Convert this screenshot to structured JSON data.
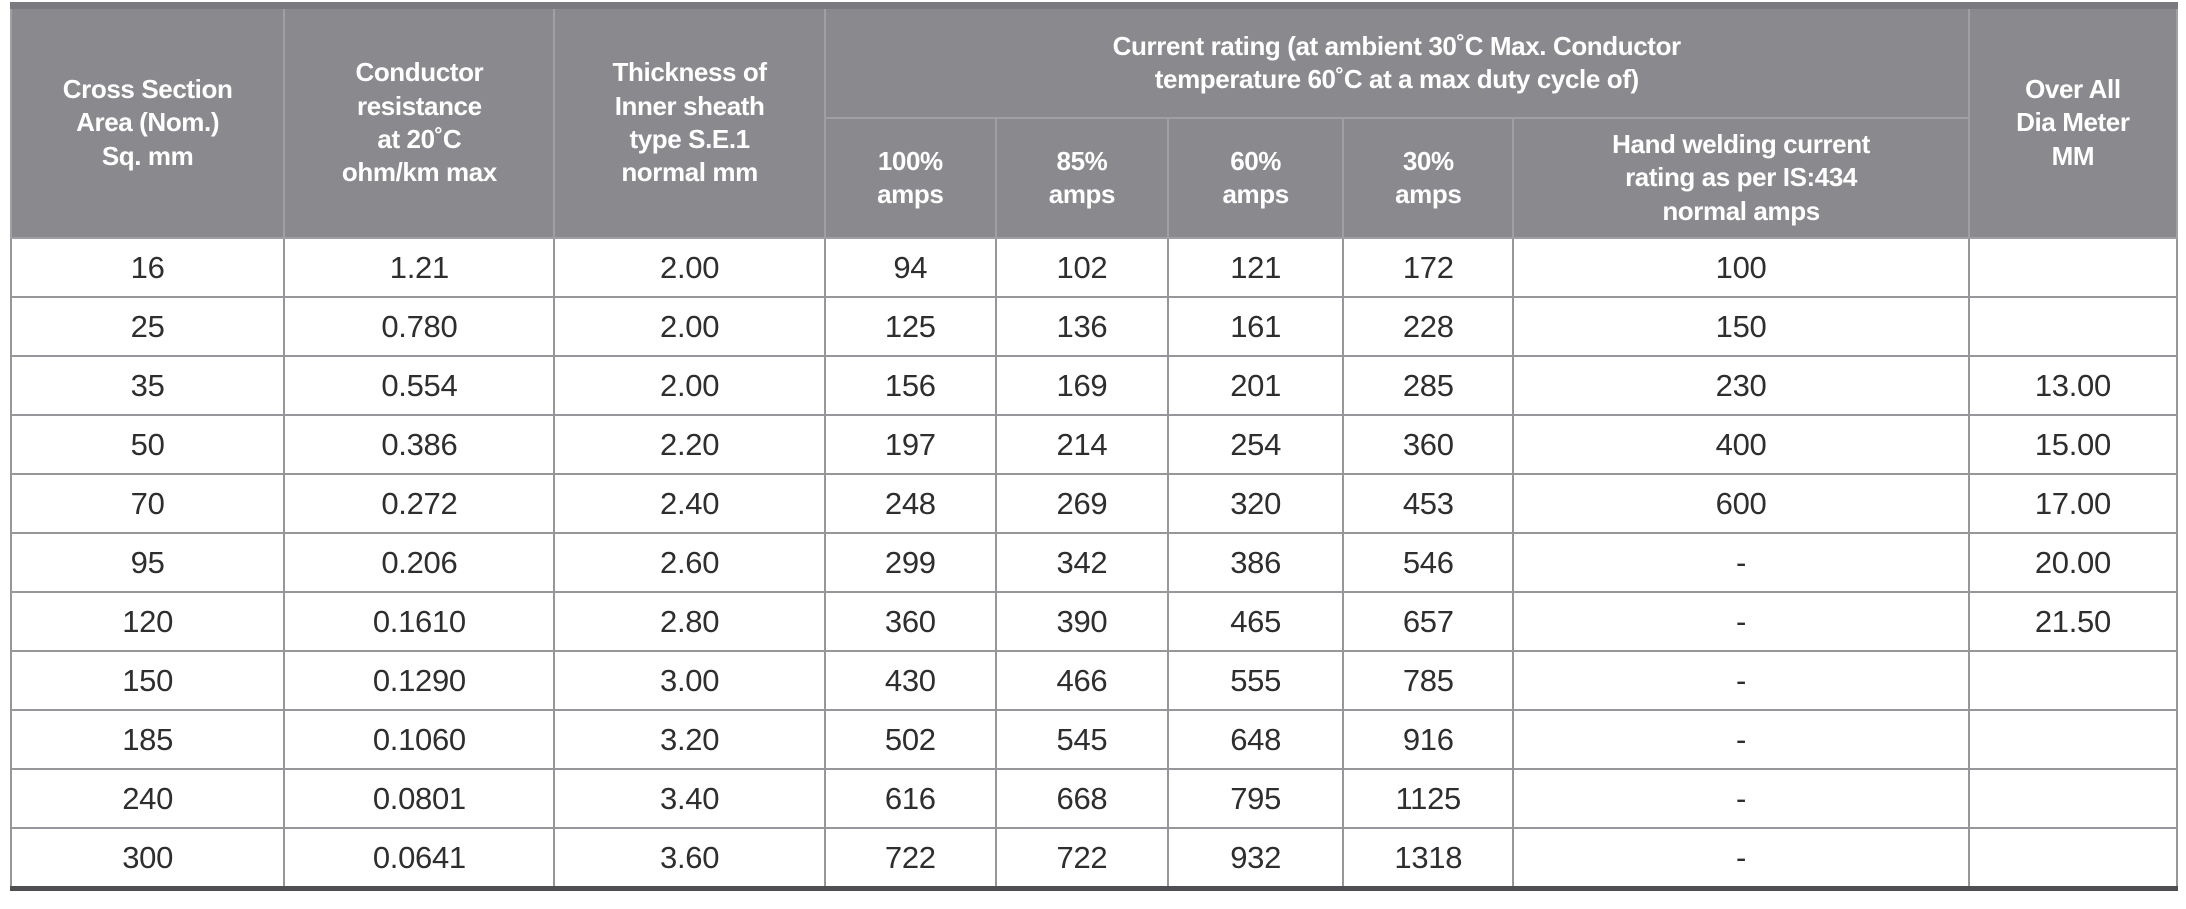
{
  "header": {
    "cross_section": "Cross Section\nArea (Nom.)\nSq. mm",
    "conductor_resistance": "Conductor\nresistance\nat 20˚C\nohm/km max",
    "inner_sheath": "Thickness of\nInner sheath\ntype S.E.1\nnormal mm",
    "current_rating_group": "Current rating (at ambient 30˚C Max. Conductor\ntemperature 60˚C at a max duty cycle of)",
    "sub": [
      "100%\namps",
      "85%\namps",
      "60%\namps",
      "30%\namps",
      "Hand welding current\nrating as per IS:434\nnormal amps"
    ],
    "overall_dia": "Over All\nDia Meter\nMM"
  },
  "rows": [
    [
      "16",
      "1.21",
      "2.00",
      "94",
      "102",
      "121",
      "172",
      "100",
      ""
    ],
    [
      "25",
      "0.780",
      "2.00",
      "125",
      "136",
      "161",
      "228",
      "150",
      ""
    ],
    [
      "35",
      "0.554",
      "2.00",
      "156",
      "169",
      "201",
      "285",
      "230",
      "13.00"
    ],
    [
      "50",
      "0.386",
      "2.20",
      "197",
      "214",
      "254",
      "360",
      "400",
      "15.00"
    ],
    [
      "70",
      "0.272",
      "2.40",
      "248",
      "269",
      "320",
      "453",
      "600",
      "17.00"
    ],
    [
      "95",
      "0.206",
      "2.60",
      "299",
      "342",
      "386",
      "546",
      "-",
      "20.00"
    ],
    [
      "120",
      "0.1610",
      "2.80",
      "360",
      "390",
      "465",
      "657",
      "-",
      "21.50"
    ],
    [
      "150",
      "0.1290",
      "3.00",
      "430",
      "466",
      "555",
      "785",
      "-",
      ""
    ],
    [
      "185",
      "0.1060",
      "3.20",
      "502",
      "545",
      "648",
      "916",
      "-",
      ""
    ],
    [
      "240",
      "0.0801",
      "3.40",
      "616",
      "668",
      "795",
      "1125",
      "-",
      ""
    ],
    [
      "300",
      "0.0641",
      "3.60",
      "722",
      "722",
      "932",
      "1318",
      "-",
      ""
    ]
  ],
  "colors": {
    "header_bg": "#8a8a8e",
    "header_text": "#ffffff",
    "grid_line": "#97979b",
    "body_text": "#2e2e30",
    "top_border": "#7b7b7f",
    "bottom_border": "#4f4f53"
  }
}
